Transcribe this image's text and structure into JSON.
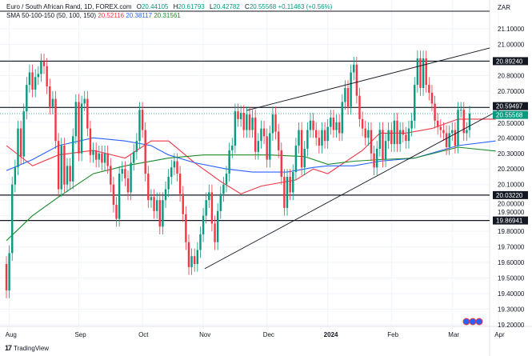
{
  "header": {
    "symbol": "Euro / South African Rand, 1D, FOREX.com",
    "open_label": "O",
    "open": "20.44105",
    "high_label": "H",
    "high": "20.61793",
    "low_label": "L",
    "low": "20.42782",
    "close_label": "C",
    "close": "20.55568",
    "change": "+0.11463 (+0.56%)"
  },
  "indicator": {
    "name": "SMA 50-100-150 (50, 100, 150)",
    "sma50": "20.52116",
    "sma100": "20.38117",
    "sma150": "20.31561"
  },
  "currency_label": "ZAR",
  "footer": {
    "logo_icon": "tradingview-logo-icon",
    "brand": "TradingView"
  },
  "colors": {
    "up": "#089981",
    "down": "#f23645",
    "sma50": "#f23645",
    "sma100": "#2962ff",
    "sma150": "#1b8a2a",
    "levels": "#131722"
  },
  "chart_data": {
    "type": "candlestick",
    "title": "Euro / South African Rand, 1D, FOREX.com",
    "ylim": [
      19.15,
      21.2
    ],
    "grid": true,
    "y_ticks": [
      "21.10000",
      "21.00000",
      "20.80000",
      "20.70000",
      "20.50000",
      "20.40000",
      "20.30000",
      "20.20000",
      "20.10000",
      "20.00000",
      "19.90000",
      "19.80000",
      "19.70000",
      "19.60000",
      "19.50000",
      "19.40000",
      "19.30000",
      "19.20000"
    ],
    "y_tick_values": [
      21.1,
      21.0,
      20.8,
      20.7,
      20.5,
      20.4,
      20.3,
      20.2,
      20.1,
      20.0,
      19.9,
      19.8,
      19.7,
      19.6,
      19.5,
      19.4,
      19.3,
      19.2
    ],
    "x_ticks": [
      {
        "label": "Aug",
        "index": 1,
        "bold": false
      },
      {
        "label": "Sep",
        "index": 25,
        "bold": false
      },
      {
        "label": "Oct",
        "index": 47,
        "bold": false
      },
      {
        "label": "Nov",
        "index": 68,
        "bold": false
      },
      {
        "label": "Dec",
        "index": 90,
        "bold": false
      },
      {
        "label": "2024",
        "index": 111,
        "bold": true
      },
      {
        "label": "Feb",
        "index": 133,
        "bold": false
      },
      {
        "label": "Mar",
        "index": 154,
        "bold": false
      },
      {
        "label": "Apr",
        "index": 170,
        "bold": false
      }
    ],
    "first_open": 19.59,
    "closes": [
      19.42,
      19.66,
      20.1,
      20.21,
      20.46,
      20.28,
      20.57,
      20.74,
      20.82,
      20.71,
      20.79,
      20.81,
      20.89,
      20.86,
      20.73,
      20.6,
      20.65,
      20.38,
      20.07,
      20.35,
      20.1,
      20.22,
      20.12,
      20.41,
      20.63,
      20.3,
      20.62,
      20.65,
      20.46,
      20.29,
      20.32,
      20.26,
      20.3,
      20.24,
      20.3,
      20.22,
      20.1,
      19.97,
      19.88,
      20.17,
      20.2,
      20.14,
      20.05,
      20.24,
      20.31,
      20.38,
      20.58,
      20.45,
      20.17,
      20.0,
      20.02,
      19.93,
      20.0,
      19.83,
      20.0,
      20.07,
      20.15,
      20.21,
      20.25,
      20.17,
      20.04,
      19.91,
      19.73,
      19.57,
      19.64,
      19.59,
      19.68,
      19.78,
      19.9,
      20.0,
      20.05,
      19.85,
      19.73,
      19.93,
      20.04,
      20.1,
      20.17,
      20.32,
      20.35,
      20.57,
      20.52,
      20.56,
      20.45,
      20.55,
      20.45,
      20.53,
      20.31,
      20.38,
      20.46,
      20.41,
      20.26,
      20.43,
      20.55,
      20.44,
      20.32,
      20.15,
      19.95,
      20.15,
      20.05,
      20.18,
      20.35,
      20.45,
      20.21,
      20.33,
      20.45,
      20.51,
      20.45,
      20.4,
      20.35,
      20.45,
      20.38,
      20.47,
      20.53,
      20.45,
      20.5,
      20.43,
      20.63,
      20.72,
      20.6,
      20.82,
      20.87,
      20.67,
      20.52,
      20.46,
      20.4,
      20.45,
      20.3,
      20.21,
      20.33,
      20.45,
      20.26,
      20.38,
      20.45,
      20.36,
      20.51,
      20.36,
      20.45,
      20.42,
      20.38,
      20.46,
      20.51,
      20.74,
      20.91,
      20.72,
      20.91,
      20.74,
      20.69,
      20.62,
      20.51,
      20.47,
      20.45,
      20.43,
      20.34,
      20.43,
      20.45,
      20.35,
      20.58,
      20.58,
      20.43,
      20.45,
      20.55568
    ],
    "series": [
      {
        "name": "SMA 50",
        "color": "#f23645",
        "points": [
          [
            0,
            20.35
          ],
          [
            9,
            20.22
          ],
          [
            18,
            20.29
          ],
          [
            30,
            20.32
          ],
          [
            41,
            20.27
          ],
          [
            50,
            20.38
          ],
          [
            56,
            20.38
          ],
          [
            65,
            20.24
          ],
          [
            74,
            20.12
          ],
          [
            81,
            20.04
          ],
          [
            88,
            20.09
          ],
          [
            100,
            20.13
          ],
          [
            106,
            20.2
          ],
          [
            111,
            20.17
          ],
          [
            123,
            20.32
          ],
          [
            129,
            20.43
          ],
          [
            138,
            20.43
          ],
          [
            147,
            20.46
          ],
          [
            156,
            20.52
          ],
          [
            169,
            20.52
          ]
        ]
      },
      {
        "name": "SMA 100",
        "color": "#2962ff",
        "points": [
          [
            0,
            20.19
          ],
          [
            9,
            20.26
          ],
          [
            18,
            20.35
          ],
          [
            30,
            20.4
          ],
          [
            41,
            20.38
          ],
          [
            50,
            20.35
          ],
          [
            56,
            20.29
          ],
          [
            65,
            20.24
          ],
          [
            76,
            20.2
          ],
          [
            85,
            20.18
          ],
          [
            97,
            20.18
          ],
          [
            106,
            20.21
          ],
          [
            111,
            20.22
          ],
          [
            120,
            20.22
          ],
          [
            129,
            20.25
          ],
          [
            141,
            20.27
          ],
          [
            156,
            20.35
          ],
          [
            169,
            20.38
          ]
        ]
      },
      {
        "name": "SMA 150",
        "color": "#1b8a2a",
        "points": [
          [
            0,
            19.74
          ],
          [
            9,
            19.9
          ],
          [
            18,
            20.02
          ],
          [
            30,
            20.17
          ],
          [
            41,
            20.22
          ],
          [
            56,
            20.27
          ],
          [
            68,
            20.29
          ],
          [
            79,
            20.29
          ],
          [
            91,
            20.29
          ],
          [
            103,
            20.28
          ],
          [
            111,
            20.23
          ],
          [
            120,
            20.25
          ],
          [
            129,
            20.26
          ],
          [
            141,
            20.27
          ],
          [
            156,
            20.34
          ],
          [
            169,
            20.315
          ]
        ]
      }
    ],
    "horizontal_levels": [
      {
        "label": "20.89240",
        "value": 20.8924
      },
      {
        "label": "20.59497",
        "value": 20.59497
      },
      {
        "label": "20.03220",
        "value": 20.0322
      },
      {
        "label": "19.86941",
        "value": 19.86941
      }
    ],
    "current_price": {
      "label": "20.55568",
      "value": 20.55568
    },
    "trendlines": [
      {
        "from": [
          83,
          20.576
        ],
        "to": [
          167,
          20.977
        ]
      },
      {
        "from": [
          68.5,
          19.56
        ],
        "to": [
          170,
          20.576
        ]
      }
    ]
  }
}
